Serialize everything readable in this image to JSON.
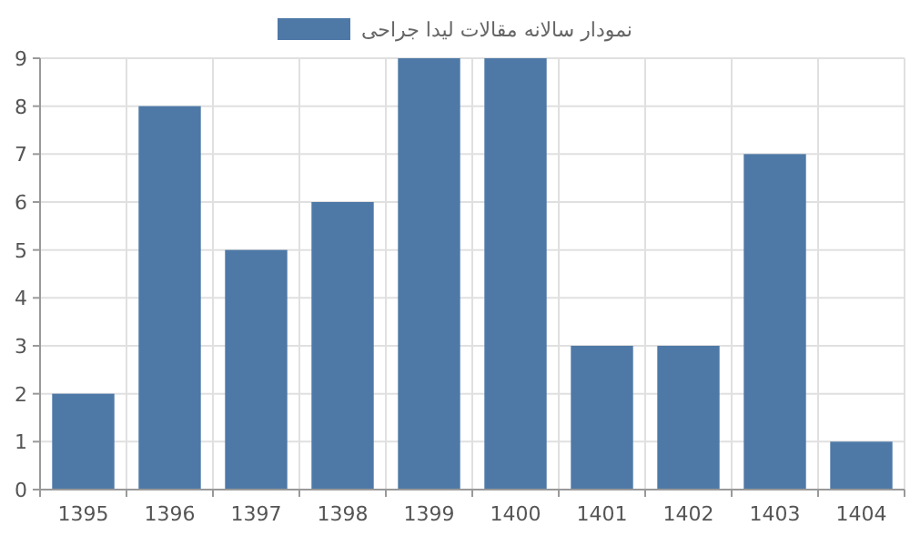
{
  "chart_data": {
    "type": "bar",
    "categories": [
      "1395",
      "1396",
      "1397",
      "1398",
      "1399",
      "1400",
      "1401",
      "1402",
      "1403",
      "1404"
    ],
    "series": [
      {
        "name": "نمودار سالانه مقالات لیدا جراحی",
        "color": "#4e79a7",
        "values": [
          2,
          8,
          5,
          6,
          9,
          9,
          3,
          3,
          7,
          1
        ]
      }
    ],
    "ylim": [
      0,
      9
    ],
    "yticks": [
      0,
      1,
      2,
      3,
      4,
      5,
      6,
      7,
      8,
      9
    ],
    "grid": true,
    "legend": "top"
  }
}
